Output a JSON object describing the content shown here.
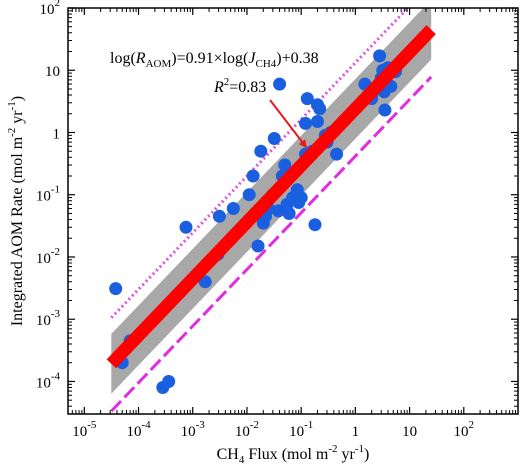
{
  "chart_data": {
    "type": "scatter",
    "x_scale": "log",
    "y_scale": "log",
    "xlim": [
      5e-06,
      1000
    ],
    "ylim": [
      3e-05,
      100
    ],
    "x_ticks": [
      1e-05,
      0.0001,
      0.001,
      0.01,
      0.1,
      1,
      10,
      100
    ],
    "y_ticks": [
      0.0001,
      0.001,
      0.01,
      0.1,
      1,
      10,
      100
    ],
    "x_tick_labels": [
      {
        "base": "10",
        "exp": "-5"
      },
      {
        "base": "10",
        "exp": "-4"
      },
      {
        "base": "10",
        "exp": "-3"
      },
      {
        "base": "10",
        "exp": "-2"
      },
      {
        "base": "10",
        "exp": "-1"
      },
      {
        "base": "1",
        "exp": ""
      },
      {
        "base": "10",
        "exp": ""
      },
      {
        "base": "10",
        "exp": "2"
      }
    ],
    "y_tick_labels": [
      {
        "base": "10",
        "exp": "-4"
      },
      {
        "base": "10",
        "exp": "-3"
      },
      {
        "base": "10",
        "exp": "-2"
      },
      {
        "base": "10",
        "exp": "-1"
      },
      {
        "base": "1",
        "exp": ""
      },
      {
        "base": "10",
        "exp": ""
      },
      {
        "base": "10",
        "exp": "2"
      }
    ],
    "xlabel": {
      "pre": "CH",
      "sub": "4",
      "mid": " Flux (mol m",
      "sup1": "-2",
      "mid2": " yr",
      "sup2": "-1",
      "post": ")"
    },
    "ylabel": {
      "pre": "Integrated AOM Rate (mol m",
      "sup1": "-2",
      "mid": " yr",
      "sup2": "-1",
      "post": ")"
    },
    "fit": {
      "slope": 0.91,
      "intercept": 0.38,
      "x_range": [
        3.15e-05,
        25
      ]
    },
    "confidence_band": {
      "lower_offset": -0.48,
      "upper_offset": 0.48,
      "x_range": [
        3.15e-05,
        25
      ]
    },
    "upper_bound": {
      "slope": 0.91,
      "intercept": 1.12,
      "x_range": [
        3.15e-05,
        25
      ]
    },
    "lower_bound": {
      "slope": 0.91,
      "intercept": -0.38,
      "x_range": [
        3.15e-05,
        25
      ]
    },
    "equation": {
      "p1": "log(",
      "R": "R",
      "AOM": "AOM",
      "p2": ")=0.91×log(",
      "J": "J",
      "CH4": "CH4",
      "p3": ")+0.38"
    },
    "r2": {
      "R": "R",
      "sup": "2",
      "val": "=0.83"
    },
    "arrow_target": {
      "x": 0.16,
      "y": 0.5
    },
    "colors": {
      "points": "#1a5fe0",
      "fit": "#ff0000",
      "band": "#a8a8a8",
      "upper": "#e050e0",
      "lower": "#e02de0",
      "arrow": "#e8191e"
    },
    "points": [
      {
        "x": 3.8e-05,
        "y": 0.0031
      },
      {
        "x": 5e-05,
        "y": 0.0002
      },
      {
        "x": 7e-05,
        "y": 0.00045
      },
      {
        "x": 0.00028,
        "y": 8e-05
      },
      {
        "x": 0.00036,
        "y": 0.0001
      },
      {
        "x": 0.00075,
        "y": 0.03
      },
      {
        "x": 0.0017,
        "y": 0.004
      },
      {
        "x": 0.0029,
        "y": 0.011
      },
      {
        "x": 0.0031,
        "y": 0.045
      },
      {
        "x": 0.0052,
        "y": 0.02
      },
      {
        "x": 0.0056,
        "y": 0.06
      },
      {
        "x": 0.011,
        "y": 0.1
      },
      {
        "x": 0.013,
        "y": 0.2
      },
      {
        "x": 0.016,
        "y": 0.015
      },
      {
        "x": 0.018,
        "y": 0.5
      },
      {
        "x": 0.02,
        "y": 0.035
      },
      {
        "x": 0.022,
        "y": 0.045
      },
      {
        "x": 0.025,
        "y": 0.06
      },
      {
        "x": 0.03,
        "y": 0.1
      },
      {
        "x": 0.032,
        "y": 0.8
      },
      {
        "x": 0.038,
        "y": 0.055
      },
      {
        "x": 0.04,
        "y": 6
      },
      {
        "x": 0.045,
        "y": 0.2
      },
      {
        "x": 0.05,
        "y": 0.3
      },
      {
        "x": 0.055,
        "y": 0.07
      },
      {
        "x": 0.06,
        "y": 0.05
      },
      {
        "x": 0.07,
        "y": 0.09
      },
      {
        "x": 0.085,
        "y": 0.12
      },
      {
        "x": 0.09,
        "y": 0.075
      },
      {
        "x": 0.1,
        "y": 0.09
      },
      {
        "x": 0.12,
        "y": 0.45
      },
      {
        "x": 0.12,
        "y": 1.4
      },
      {
        "x": 0.13,
        "y": 3.5
      },
      {
        "x": 0.16,
        "y": 0.5
      },
      {
        "x": 0.18,
        "y": 0.033
      },
      {
        "x": 0.2,
        "y": 1.5
      },
      {
        "x": 0.2,
        "y": 2.8
      },
      {
        "x": 0.22,
        "y": 2.4
      },
      {
        "x": 0.28,
        "y": 0.9
      },
      {
        "x": 0.3,
        "y": 0.7
      },
      {
        "x": 0.35,
        "y": 1.0
      },
      {
        "x": 0.45,
        "y": 0.45
      },
      {
        "x": 1.5,
        "y": 6.0
      },
      {
        "x": 1.8,
        "y": 4.0
      },
      {
        "x": 2.0,
        "y": 3.5
      },
      {
        "x": 2.5,
        "y": 5.0
      },
      {
        "x": 2.8,
        "y": 17
      },
      {
        "x": 3.0,
        "y": 7.5
      },
      {
        "x": 3.2,
        "y": 10
      },
      {
        "x": 3.4,
        "y": 4.5
      },
      {
        "x": 3.5,
        "y": 2.3
      },
      {
        "x": 3.8,
        "y": 9
      },
      {
        "x": 4.0,
        "y": 11
      },
      {
        "x": 4.5,
        "y": 5.5
      },
      {
        "x": 5.5,
        "y": 9.5
      }
    ]
  }
}
